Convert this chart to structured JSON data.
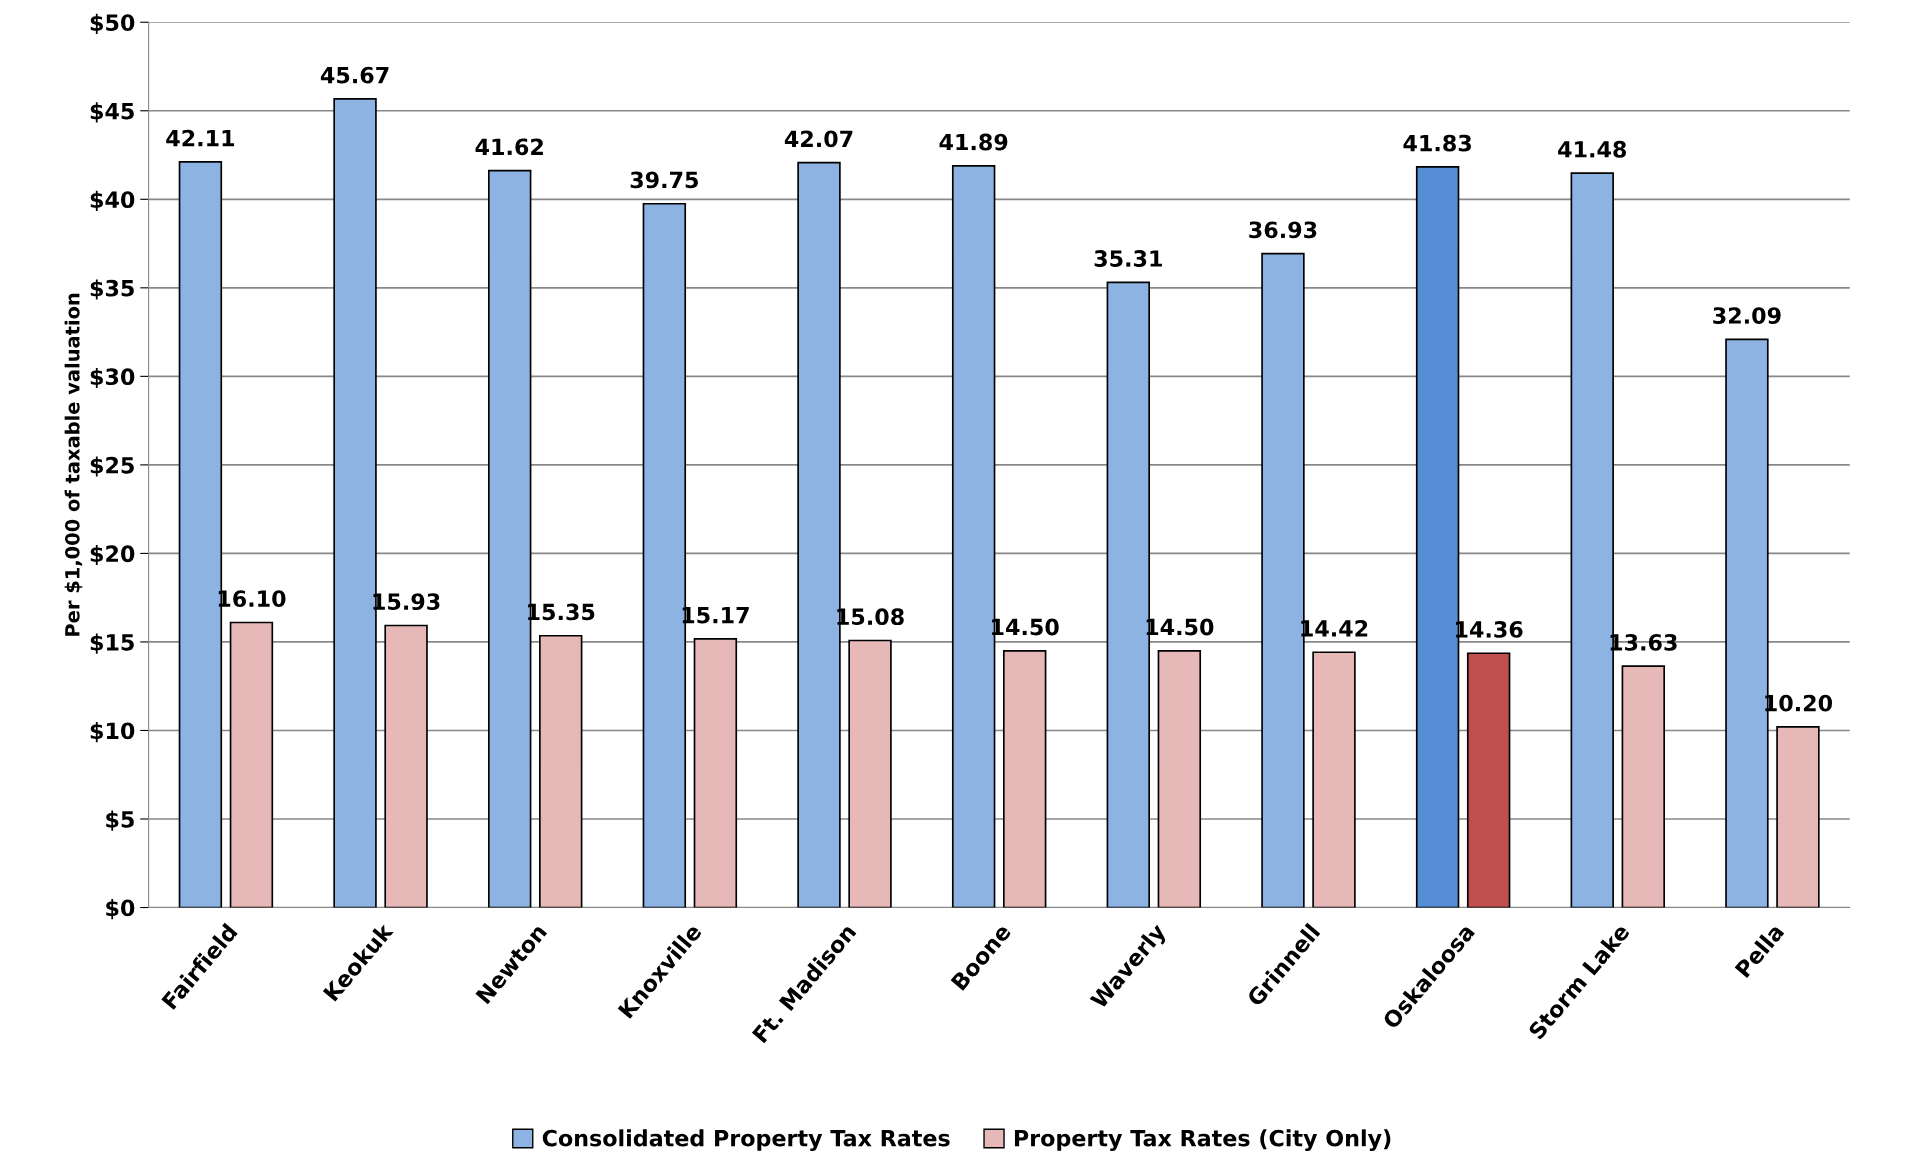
{
  "chart_data": {
    "type": "bar",
    "ylabel": "Per $1,000 of taxable valuation",
    "categories": [
      "Fairfield",
      "Keokuk",
      "Newton",
      "Knoxville",
      "Ft. Madison",
      "Boone",
      "Waverly",
      "Grinnell",
      "Oskaloosa",
      "Storm Lake",
      "Pella"
    ],
    "series": [
      {
        "name": "Consolidated Property Tax Rates",
        "color": "#8db3e2",
        "colors": [
          "#8db3e2",
          "#8db3e2",
          "#8db3e2",
          "#8db3e2",
          "#8db3e2",
          "#8db3e2",
          "#8db3e2",
          "#8db3e2",
          "#558ed5",
          "#8db3e2",
          "#8db3e2"
        ],
        "values": [
          42.11,
          45.67,
          41.62,
          39.75,
          42.07,
          41.89,
          35.31,
          36.93,
          41.83,
          41.48,
          32.09
        ],
        "value_labels": [
          "42.11",
          "45.67",
          "41.62",
          "39.75",
          "42.07",
          "41.89",
          "35.31",
          "36.93",
          "41.83",
          "41.48",
          "32.09"
        ]
      },
      {
        "name": "Property Tax Rates (City Only)",
        "color": "#e6b9b8",
        "colors": [
          "#e6b9b8",
          "#e6b9b8",
          "#e6b9b8",
          "#e6b9b8",
          "#e6b9b8",
          "#e6b9b8",
          "#e6b9b8",
          "#e6b9b8",
          "#c0504d",
          "#e6b9b8",
          "#e6b9b8"
        ],
        "values": [
          16.1,
          15.93,
          15.35,
          15.17,
          15.08,
          14.5,
          14.5,
          14.42,
          14.36,
          13.63,
          10.2
        ],
        "value_labels": [
          "16.10",
          "15.93",
          "15.35",
          "15.17",
          "15.08",
          "14.50",
          "14.50",
          "14.42",
          "14.36",
          "13.63",
          "10.20"
        ]
      }
    ],
    "ylim": [
      0,
      50
    ],
    "yticks": [
      {
        "value": 0,
        "label": "$0"
      },
      {
        "value": 5,
        "label": "$5"
      },
      {
        "value": 10,
        "label": "$10"
      },
      {
        "value": 15,
        "label": "$15"
      },
      {
        "value": 20,
        "label": "$20"
      },
      {
        "value": 25,
        "label": "$25"
      },
      {
        "value": 30,
        "label": "$30"
      },
      {
        "value": 35,
        "label": "$35"
      },
      {
        "value": 40,
        "label": "$40"
      },
      {
        "value": 45,
        "label": "$45"
      },
      {
        "value": 50,
        "label": "$50"
      }
    ],
    "grid": "y",
    "legend": "bottom"
  }
}
